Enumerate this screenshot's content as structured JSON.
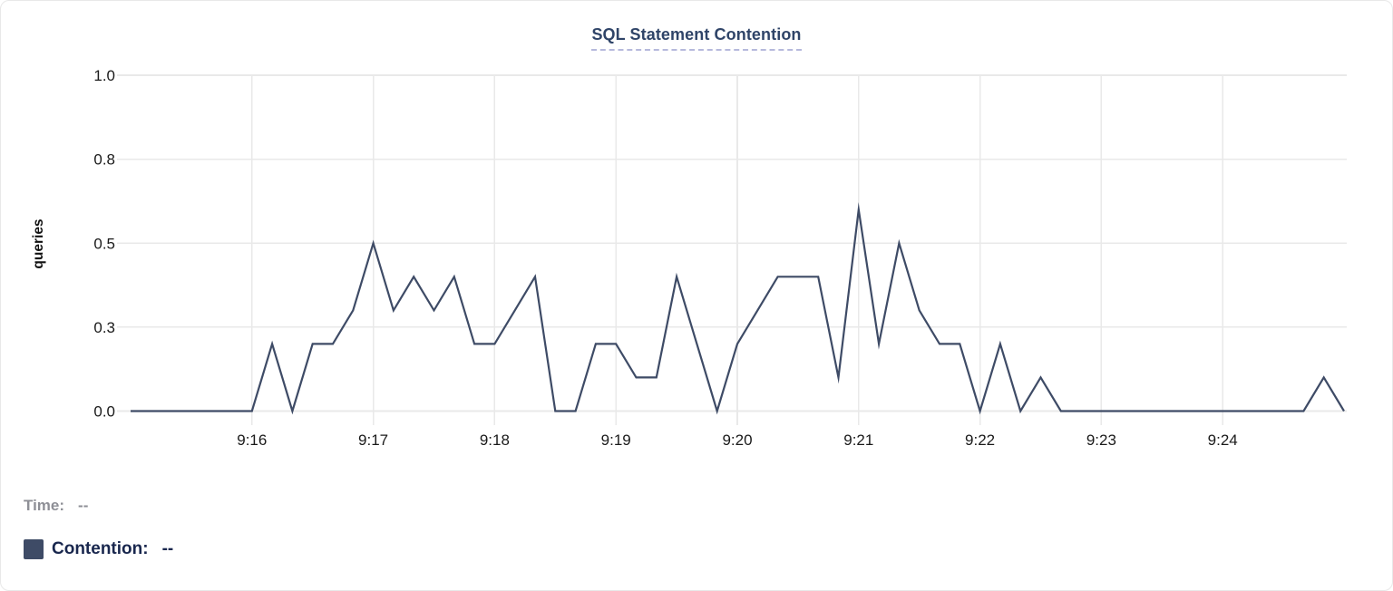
{
  "chart_data": {
    "type": "line",
    "title": "SQL Statement Contention",
    "xlabel": "",
    "ylabel": "queries",
    "ylim": [
      0,
      1.0
    ],
    "grid": true,
    "legend_position": "bottom-left",
    "x_interval_seconds": 10,
    "x": [
      "9:15:00",
      "9:15:10",
      "9:15:20",
      "9:15:30",
      "9:15:40",
      "9:15:50",
      "9:16:00",
      "9:16:10",
      "9:16:20",
      "9:16:30",
      "9:16:40",
      "9:16:50",
      "9:17:00",
      "9:17:10",
      "9:17:20",
      "9:17:30",
      "9:17:40",
      "9:17:50",
      "9:18:00",
      "9:18:10",
      "9:18:20",
      "9:18:30",
      "9:18:40",
      "9:18:50",
      "9:19:00",
      "9:19:10",
      "9:19:20",
      "9:19:30",
      "9:19:40",
      "9:19:50",
      "9:20:00",
      "9:20:10",
      "9:20:20",
      "9:20:30",
      "9:20:40",
      "9:20:50",
      "9:21:00",
      "9:21:10",
      "9:21:20",
      "9:21:30",
      "9:21:40",
      "9:21:50",
      "9:22:00",
      "9:22:10",
      "9:22:20",
      "9:22:30",
      "9:22:40",
      "9:22:50",
      "9:23:00",
      "9:23:10",
      "9:23:20",
      "9:23:30",
      "9:23:40",
      "9:23:50",
      "9:24:00",
      "9:24:10",
      "9:24:20",
      "9:24:30",
      "9:24:40",
      "9:24:50",
      "9:25:00"
    ],
    "series": [
      {
        "name": "Contention",
        "color": "#3E4B66",
        "values": [
          0,
          0,
          0,
          0,
          0,
          0,
          0,
          0.2,
          0,
          0.2,
          0.2,
          0.3,
          0.5,
          0.3,
          0.4,
          0.3,
          0.4,
          0.2,
          0.2,
          0.3,
          0.4,
          0,
          0,
          0.2,
          0.2,
          0.1,
          0.1,
          0.4,
          0.2,
          0,
          0.2,
          0.3,
          0.4,
          0.4,
          0.4,
          0.1,
          0.6,
          0.2,
          0.5,
          0.3,
          0.2,
          0.2,
          0,
          0.2,
          0,
          0.1,
          0,
          0,
          0,
          0,
          0,
          0,
          0,
          0,
          0,
          0,
          0,
          0,
          0,
          0.1,
          0
        ]
      }
    ],
    "y_ticks": [
      {
        "value": 0,
        "label": "0.0"
      },
      {
        "value": 0.25,
        "label": "0.3"
      },
      {
        "value": 0.5,
        "label": "0.5"
      },
      {
        "value": 0.75,
        "label": "0.8"
      },
      {
        "value": 1,
        "label": "1.0"
      }
    ],
    "x_ticks": [
      {
        "index": 6,
        "label": "9:16"
      },
      {
        "index": 12,
        "label": "9:17"
      },
      {
        "index": 18,
        "label": "9:18"
      },
      {
        "index": 24,
        "label": "9:19"
      },
      {
        "index": 30,
        "label": "9:20"
      },
      {
        "index": 36,
        "label": "9:21"
      },
      {
        "index": 42,
        "label": "9:22"
      },
      {
        "index": 48,
        "label": "9:23"
      },
      {
        "index": 54,
        "label": "9:24"
      }
    ]
  },
  "legend": {
    "time_label": "Time:",
    "time_value": "--",
    "contention_label": "Contention:",
    "contention_value": "--"
  },
  "colors": {
    "line": "#3E4B66",
    "swatch": "#3E4B66",
    "title_text": "#2F4468",
    "title_underline": "#B6B9DC",
    "grid": "#E9E9E9",
    "axis_text": "#1A1A1A",
    "legend_time_text": "#8E8F96",
    "legend_contention_text": "#19274E"
  }
}
